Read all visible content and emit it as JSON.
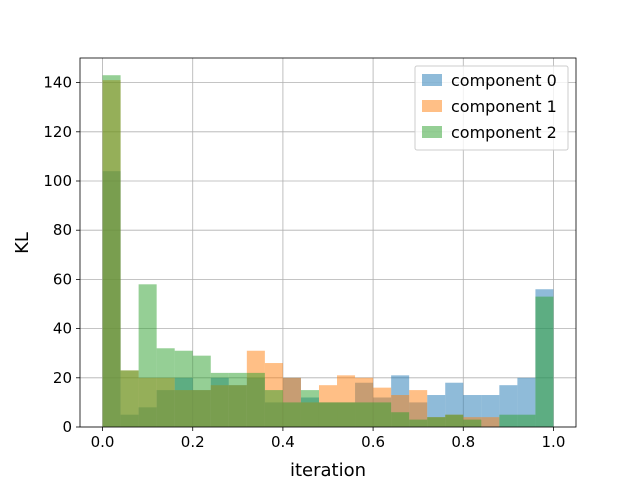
{
  "chart_data": {
    "type": "histogram",
    "xlabel": "iteration",
    "ylabel": "KL",
    "xlim": [
      -0.05,
      1.05
    ],
    "ylim": [
      0,
      150
    ],
    "xticks": [
      "0.0",
      "0.2",
      "0.4",
      "0.6",
      "0.8",
      "1.0"
    ],
    "yticks": [
      "0",
      "20",
      "40",
      "60",
      "80",
      "100",
      "120",
      "140"
    ],
    "grid": true,
    "legend_position": "top-right",
    "bins": {
      "start": 0.0,
      "end": 1.0,
      "count": 25
    },
    "series": [
      {
        "name": "component 0",
        "color": "#1f77b4",
        "counts": [
          104,
          5,
          8,
          15,
          20,
          15,
          20,
          17,
          20,
          10,
          20,
          12,
          10,
          10,
          18,
          12,
          21,
          10,
          13,
          18,
          13,
          13,
          17,
          20,
          56
        ]
      },
      {
        "name": "component 1",
        "color": "#ff7f0e",
        "counts": [
          141,
          23,
          20,
          20,
          15,
          15,
          17,
          17,
          31,
          26,
          20,
          10,
          17,
          21,
          20,
          16,
          13,
          15,
          4,
          5,
          4,
          4,
          0,
          0,
          0
        ]
      },
      {
        "name": "component 2",
        "color": "#2ca02c",
        "counts": [
          143,
          23,
          58,
          32,
          31,
          29,
          22,
          22,
          22,
          15,
          10,
          15,
          10,
          10,
          10,
          10,
          6,
          3,
          4,
          5,
          3,
          0,
          5,
          5,
          53
        ]
      }
    ]
  }
}
